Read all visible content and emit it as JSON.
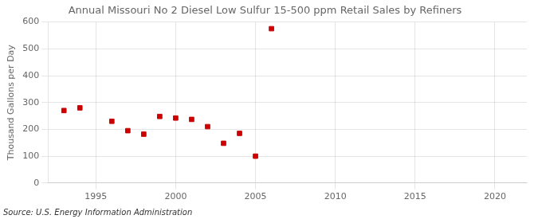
{
  "chart_data": {
    "type": "scatter",
    "title": "Annual Missouri No 2 Diesel Low Sulfur 15-500 ppm Retail Sales by Refiners",
    "ylabel": "Thousand Gallons per Day",
    "source": "Source: U.S. Energy Information Administration",
    "x": [
      1993,
      1994,
      1996,
      1997,
      1998,
      1999,
      2000,
      2001,
      2002,
      2003,
      2004,
      2005,
      2006
    ],
    "values": [
      270,
      280,
      230,
      195,
      182,
      248,
      242,
      237,
      210,
      148,
      185,
      100,
      575
    ],
    "color": "#cc0000",
    "marker": "square",
    "xlim": [
      1992,
      2022
    ],
    "xticks": [
      1995,
      2000,
      2005,
      2010,
      2015,
      2020
    ],
    "ylim": [
      0,
      600
    ],
    "yticks": [
      0,
      100,
      200,
      300,
      400,
      500,
      600
    ],
    "grid": true
  }
}
